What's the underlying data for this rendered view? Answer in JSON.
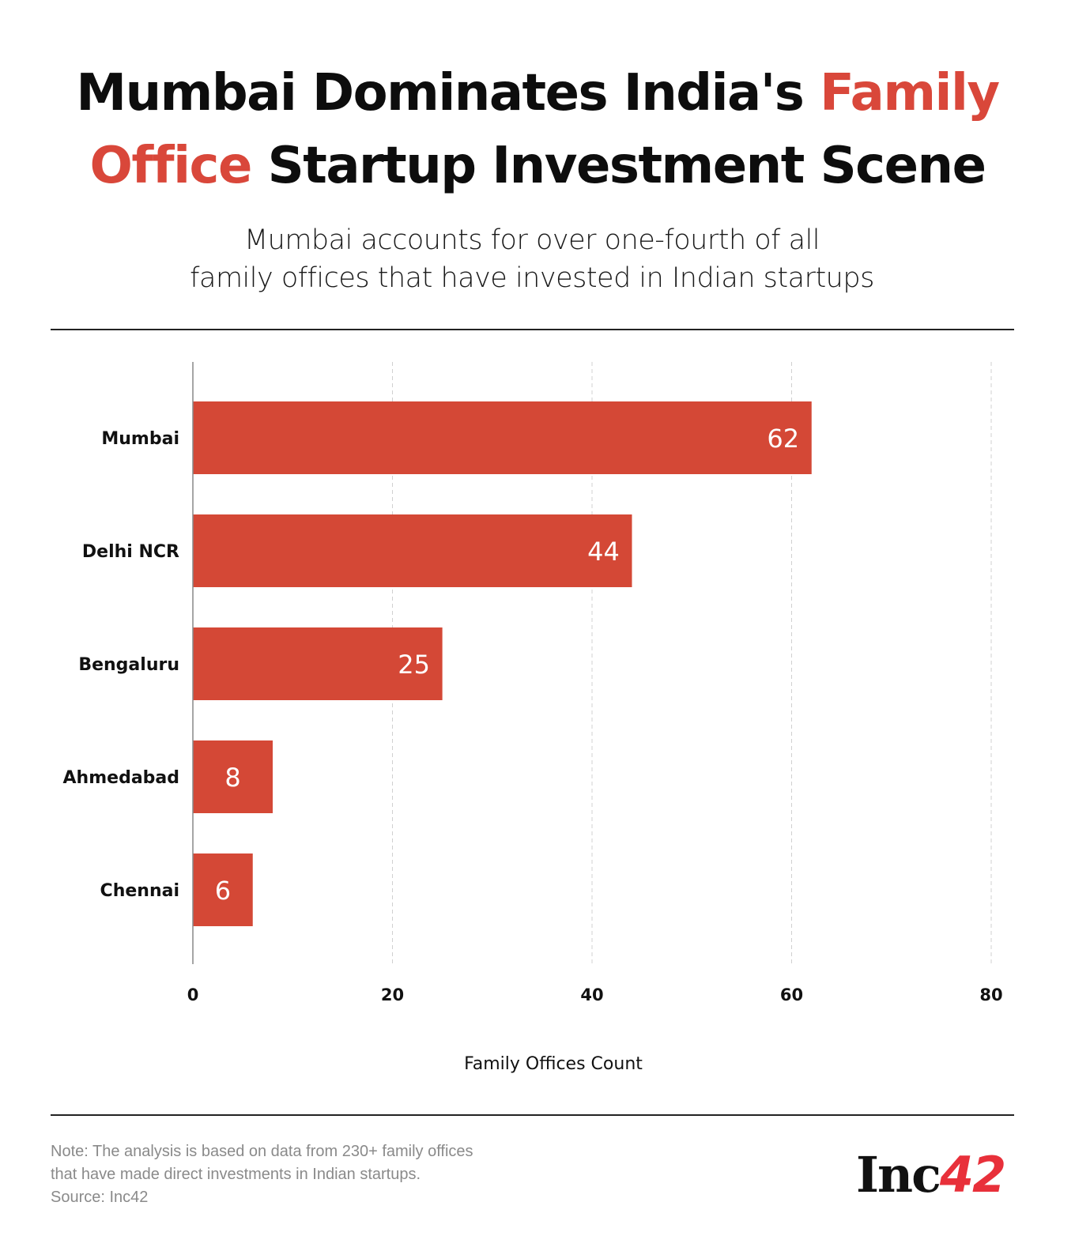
{
  "header": {
    "title_part1": "Mumbai Dominates India's ",
    "title_accent1": "Family",
    "title_accent2": "Office",
    "title_part2": " Startup Investment Scene",
    "subtitle_line1": "Mumbai accounts for over one-fourth of all",
    "subtitle_line2": "family offices that have invested in Indian startups"
  },
  "chart_data": {
    "type": "bar",
    "orientation": "horizontal",
    "categories": [
      "Mumbai",
      "Delhi NCR",
      "Bengaluru",
      "Ahmedabad",
      "Chennai"
    ],
    "values": [
      62,
      44,
      25,
      8,
      6
    ],
    "xlabel": "Family Offices Count",
    "ylabel": "",
    "xlim": [
      0,
      80
    ],
    "xticks": [
      "0",
      "20",
      "40",
      "60",
      "80"
    ],
    "grid": "vertical dashed",
    "bar_color": "#d44836",
    "accent_color": "#d9473a"
  },
  "footer": {
    "note_line1": "Note: The analysis is based on data from 230+ family offices",
    "note_line2": "that have made direct investments in Indian startups.",
    "source": "Source: Inc42",
    "logo_text": "Inc42"
  }
}
